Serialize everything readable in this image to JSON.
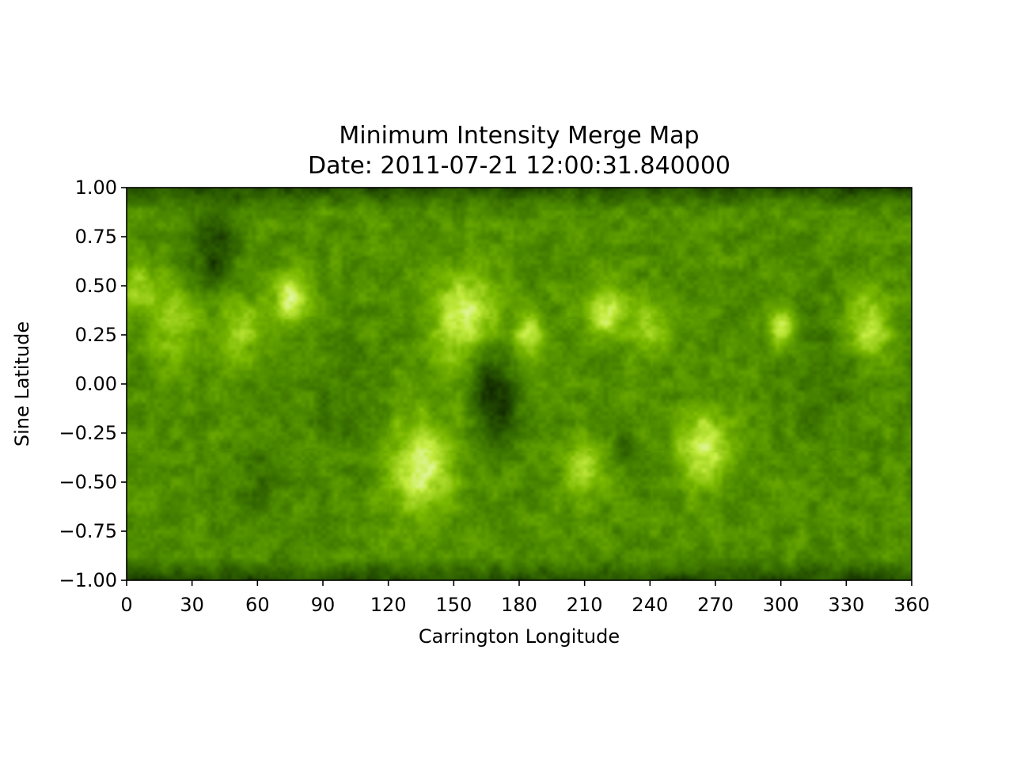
{
  "chart_data": {
    "type": "heatmap",
    "title": "Minimum Intensity Merge Map",
    "subtitle": "Date: 2011-07-21 12:00:31.840000",
    "xlabel": "Carrington Longitude",
    "ylabel": "Sine Latitude",
    "xlim": [
      0,
      360
    ],
    "ylim": [
      -1.0,
      1.0
    ],
    "x_ticks": [
      0,
      30,
      60,
      90,
      120,
      150,
      180,
      210,
      240,
      270,
      300,
      330,
      360
    ],
    "y_ticks": [
      1.0,
      0.75,
      0.5,
      0.25,
      0.0,
      -0.25,
      -0.5,
      -0.75,
      -1.0
    ],
    "y_tick_labels": [
      "1.00",
      "0.75",
      "0.50",
      "0.25",
      "0.00",
      "−0.25",
      "−0.50",
      "−0.75",
      "−1.00"
    ],
    "grid": false,
    "colormap": [
      "#0c1c00",
      "#2a5a00",
      "#4c8a00",
      "#79b800",
      "#c4ec40",
      "#ffffff"
    ],
    "bright_regions": [
      {
        "lon": 75,
        "lat": 0.43,
        "intensity": 0.85,
        "spread": 8
      },
      {
        "lon": 22,
        "lat": 0.32,
        "intensity": 0.6,
        "spread": 12
      },
      {
        "lon": 52,
        "lat": 0.28,
        "intensity": 0.55,
        "spread": 10
      },
      {
        "lon": 155,
        "lat": 0.33,
        "intensity": 0.9,
        "spread": 14
      },
      {
        "lon": 185,
        "lat": 0.25,
        "intensity": 0.75,
        "spread": 7
      },
      {
        "lon": 220,
        "lat": 0.37,
        "intensity": 0.8,
        "spread": 9
      },
      {
        "lon": 240,
        "lat": 0.28,
        "intensity": 0.6,
        "spread": 8
      },
      {
        "lon": 300,
        "lat": 0.3,
        "intensity": 0.85,
        "spread": 6
      },
      {
        "lon": 340,
        "lat": 0.3,
        "intensity": 0.75,
        "spread": 11
      },
      {
        "lon": 135,
        "lat": -0.42,
        "intensity": 0.9,
        "spread": 15
      },
      {
        "lon": 210,
        "lat": -0.45,
        "intensity": 0.65,
        "spread": 9
      },
      {
        "lon": 265,
        "lat": -0.32,
        "intensity": 0.85,
        "spread": 12
      },
      {
        "lon": 5,
        "lat": 0.5,
        "intensity": 0.5,
        "spread": 8
      }
    ],
    "dark_regions": [
      {
        "lon": 40,
        "lat": 0.68,
        "intensity": 0.8,
        "spread": 11
      },
      {
        "lon": 170,
        "lat": -0.12,
        "intensity": 0.9,
        "spread": 11
      },
      {
        "lon": 165,
        "lat": 0.1,
        "intensity": 0.6,
        "spread": 7
      },
      {
        "lon": 228,
        "lat": -0.3,
        "intensity": 0.5,
        "spread": 4
      },
      {
        "lon": 60,
        "lat": -0.5,
        "intensity": 0.35,
        "spread": 12
      },
      {
        "lon": 320,
        "lat": 0.1,
        "intensity": 0.3,
        "spread": 20
      },
      {
        "lon": 100,
        "lat": -0.1,
        "intensity": 0.3,
        "spread": 15
      }
    ]
  }
}
